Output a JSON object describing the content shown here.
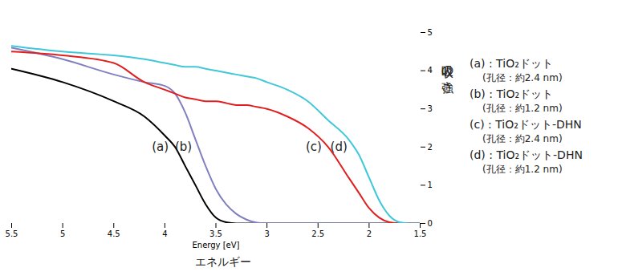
{
  "chart_data": {
    "type": "line",
    "x_label": "Energy [eV]",
    "x_caption": "エネルギー",
    "y_label": "吸収の強さ",
    "xlim": [
      5.5,
      1.5
    ],
    "xticks": [
      5.5,
      5,
      4.5,
      4,
      3.5,
      3,
      2.5,
      2,
      1.5
    ],
    "ylim": [
      0,
      5
    ],
    "yticks": [
      0,
      1,
      2,
      3,
      4,
      5
    ],
    "grid": false,
    "x": [
      5.5,
      5.0,
      4.5,
      4.2,
      4.0,
      3.9,
      3.8,
      3.7,
      3.6,
      3.5,
      3.4,
      3.3,
      3.2,
      3.1,
      3.0,
      2.8,
      2.6,
      2.4,
      2.2,
      2.1,
      2.0,
      1.9,
      1.8,
      1.7,
      1.6,
      1.5
    ],
    "series": [
      {
        "name": "(a)",
        "legend_text": "(a) : TiO₂ドット",
        "note": "(孔径：約2.4 nm)",
        "color": "#000000",
        "values": [
          4.05,
          3.7,
          3.2,
          2.8,
          2.3,
          2.0,
          1.5,
          1.0,
          0.5,
          0.15,
          0.03,
          0,
          0,
          0,
          0,
          0,
          0,
          0,
          0,
          0,
          0,
          0,
          0,
          0,
          0,
          0
        ]
      },
      {
        "name": "(b)",
        "legend_text": "(b) : TiO₂ドット",
        "note": "(孔径：約1.2 nm)",
        "color": "#8080c0",
        "values": [
          4.6,
          4.3,
          3.9,
          3.7,
          3.6,
          3.4,
          2.9,
          2.2,
          1.5,
          0.9,
          0.5,
          0.25,
          0.1,
          0.02,
          0,
          0,
          0,
          0,
          0,
          0,
          0,
          0,
          0,
          0,
          0,
          0
        ]
      },
      {
        "name": "(c)",
        "legend_text": "(c) : TiO₂ドット-DHN",
        "note": "(孔径：約2.4 nm)",
        "color": "#e02020",
        "values": [
          4.5,
          4.4,
          4.2,
          3.7,
          3.5,
          3.4,
          3.3,
          3.25,
          3.2,
          3.2,
          3.15,
          3.1,
          3.1,
          3.05,
          3.0,
          2.8,
          2.5,
          2.0,
          1.2,
          0.8,
          0.4,
          0.15,
          0.03,
          0,
          0,
          0
        ]
      },
      {
        "name": "(d)",
        "legend_text": "(d) : TiO₂ドット-DHN",
        "note": "(孔径：約1.2 nm)",
        "color": "#40c8d8",
        "values": [
          4.65,
          4.5,
          4.4,
          4.3,
          4.2,
          4.15,
          4.1,
          4.1,
          4.05,
          4.0,
          3.95,
          3.9,
          3.85,
          3.8,
          3.7,
          3.5,
          3.2,
          2.7,
          2.2,
          1.8,
          1.2,
          0.6,
          0.2,
          0.03,
          0,
          0
        ]
      }
    ]
  }
}
